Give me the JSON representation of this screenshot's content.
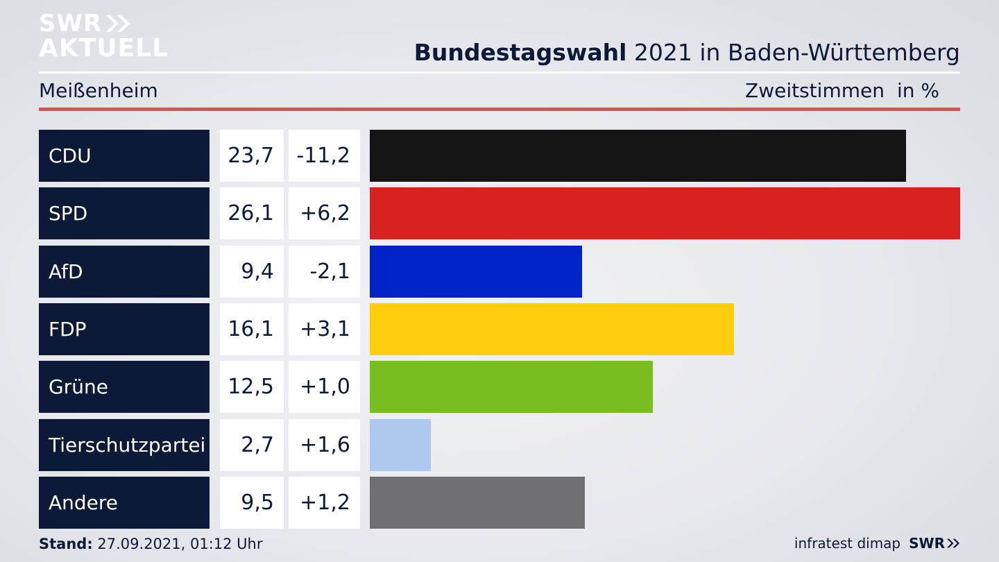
{
  "logo": {
    "line1": "SWR",
    "line2": "AKTUELL"
  },
  "header": {
    "title_bold": "Bundestagswahl",
    "title_rest": " 2021 in Baden-Württemberg",
    "location": "Meißenheim",
    "measure": "Zweitstimmen",
    "unit": "in %"
  },
  "colors": {
    "navy": "#0c1a38",
    "accent_red": "#d9534f"
  },
  "chart_data": {
    "type": "bar",
    "categories": [
      "CDU",
      "SPD",
      "AfD",
      "FDP",
      "Grüne",
      "Tierschutzpartei",
      "Andere"
    ],
    "values": [
      23.7,
      26.1,
      9.4,
      16.1,
      12.5,
      2.7,
      9.5
    ],
    "values_label": [
      "23,7",
      "26,1",
      "9,4",
      "16,1",
      "12,5",
      "2,7",
      "9,5"
    ],
    "diff_label": [
      "-11,2",
      "+6,2",
      "-2,1",
      "+3,1",
      "+1,0",
      "+1,6",
      "+1,2"
    ],
    "colors": [
      "#141414",
      "#d82121",
      "#0023c8",
      "#fecd0b",
      "#78be1e",
      "#aec8f0",
      "#707072"
    ]
  },
  "footer": {
    "stand_label": "Stand:",
    "stand_value": " 27.09.2021, 01:12 Uhr"
  },
  "credit": {
    "source": "infratest dimap",
    "brand": "SWR"
  }
}
